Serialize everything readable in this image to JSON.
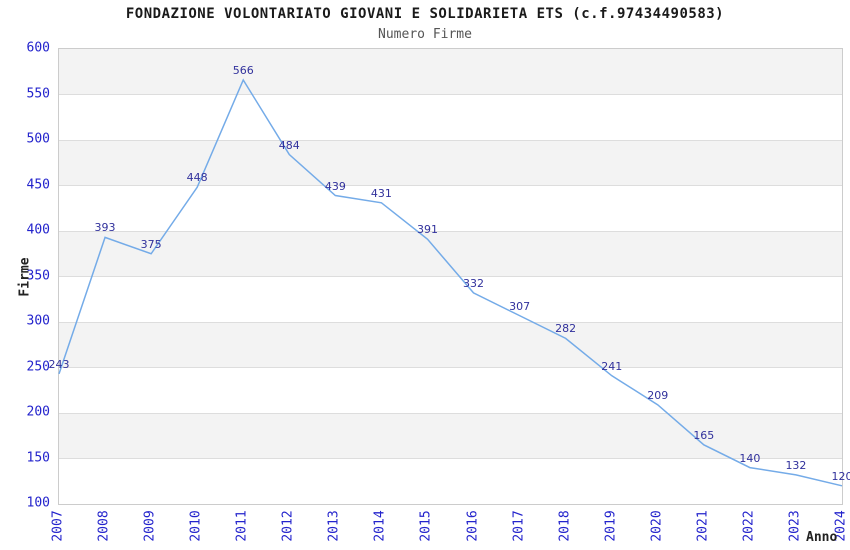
{
  "title": "FONDAZIONE VOLONTARIATO GIOVANI E SOLIDARIETA ETS (c.f.97434490583)",
  "subtitle": "Numero Firme",
  "chart_data": {
    "type": "line",
    "title": "FONDAZIONE VOLONTARIATO GIOVANI E SOLIDARIETA ETS (c.f.97434490583)",
    "subtitle": "Numero Firme",
    "categories": [
      "2007",
      "2008",
      "2009",
      "2010",
      "2011",
      "2012",
      "2013",
      "2014",
      "2015",
      "2016",
      "2017",
      "2018",
      "2019",
      "2020",
      "2021",
      "2022",
      "2023",
      "2024"
    ],
    "series": [
      {
        "name": "Numero Firme",
        "values": [
          243,
          393,
          375,
          448,
          566,
          484,
          439,
          431,
          391,
          332,
          307,
          282,
          241,
          209,
          165,
          140,
          132,
          120
        ]
      }
    ],
    "xlabel": "Anno",
    "ylabel": "Firme",
    "ylim": [
      100,
      600
    ],
    "ytick_step": 50,
    "yticks": [
      100,
      150,
      200,
      250,
      300,
      350,
      400,
      450,
      500,
      550,
      600
    ],
    "grid": "horizontal-only",
    "legend_position": "none",
    "data_labels_shown": true,
    "x_tick_rotation_degrees": 90,
    "colors": {
      "line": "#74abe8",
      "data_label": "#31319c",
      "tick_label": "#2323cc",
      "band_fill": "#f3f3f3",
      "gridline": "#dddddd",
      "plot_border": "#cccccc"
    }
  }
}
